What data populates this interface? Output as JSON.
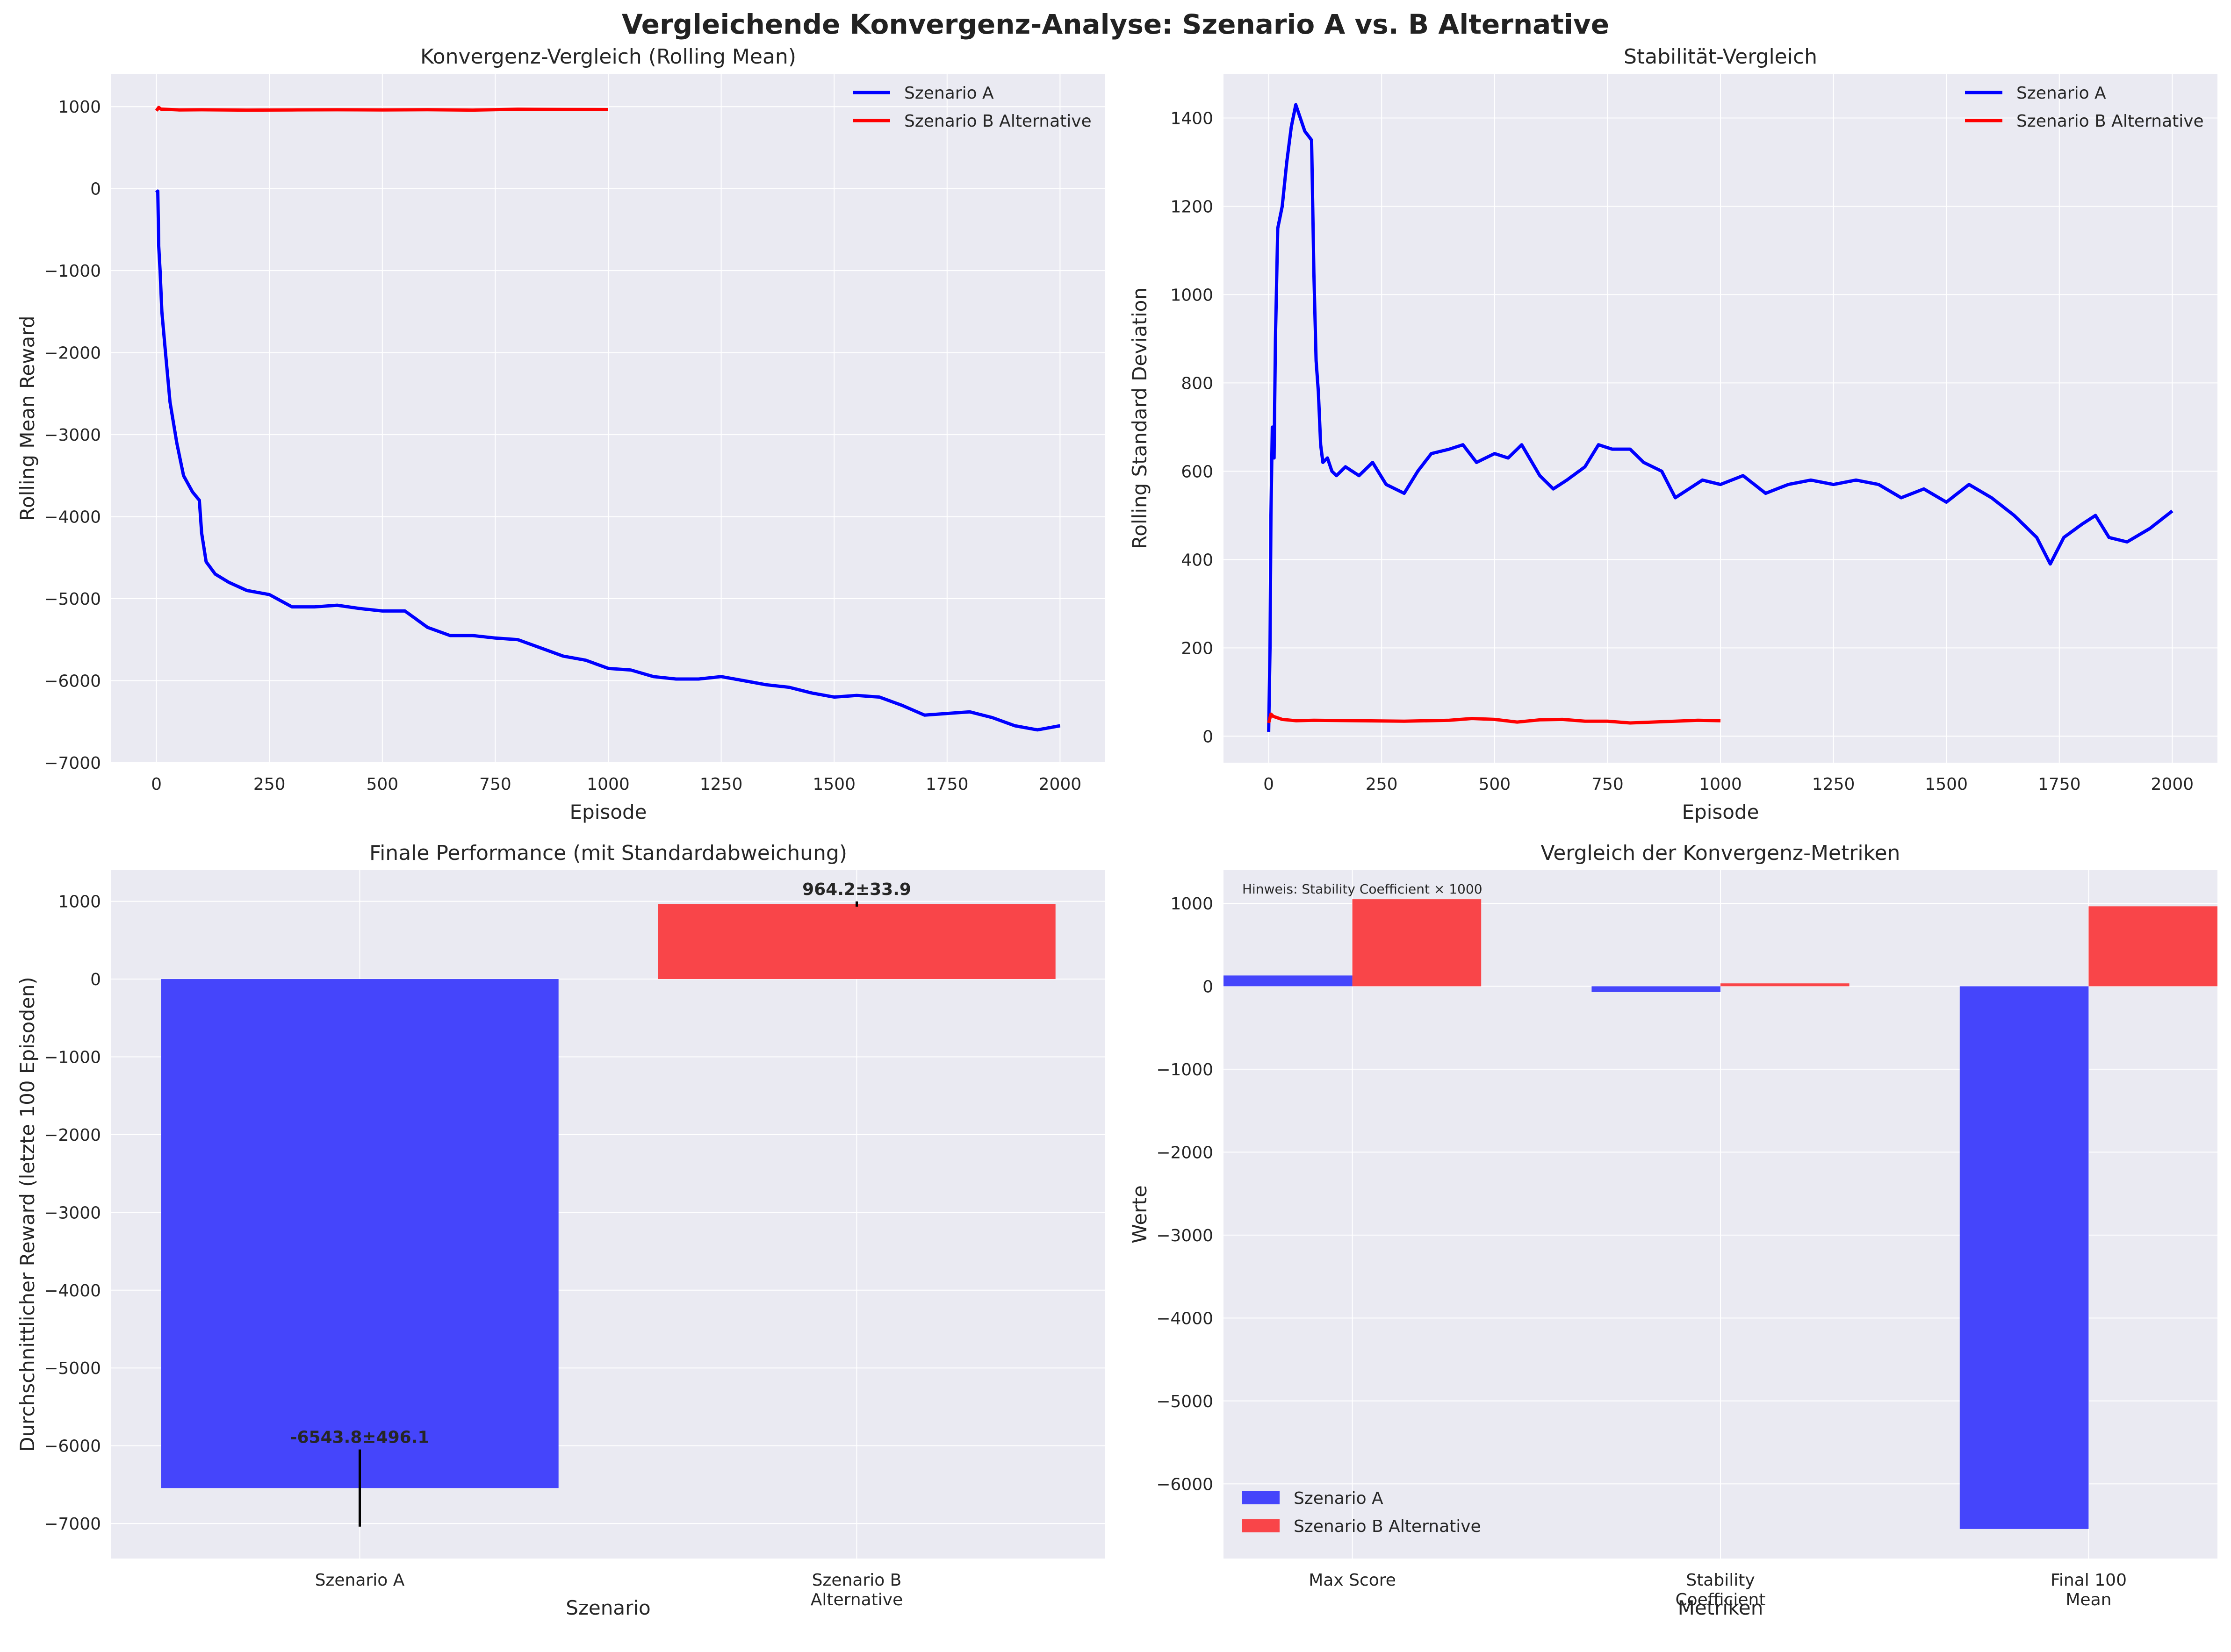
{
  "figure": {
    "title": "Vergleichende Konvergenz-Analyse: Szenario A vs. B Alternative"
  },
  "colors": {
    "scenario_a_line": "#0000ff",
    "scenario_b_line": "#ff0000",
    "scenario_a_bar": "#4545fb",
    "scenario_b_bar": "#f94549",
    "panel_background": "#eaeaf2",
    "grid": "#ffffff"
  },
  "chart_data": [
    {
      "id": "convergence",
      "type": "line",
      "title": "Konvergenz-Vergleich (Rolling Mean)",
      "xlabel": "Episode",
      "ylabel": "Rolling Mean Reward",
      "xlim": [
        -100,
        2100
      ],
      "ylim": [
        -7000,
        1400
      ],
      "xticks": [
        0,
        250,
        500,
        750,
        1000,
        1250,
        1500,
        1750,
        2000
      ],
      "yticks": [
        -7000,
        -6000,
        -5000,
        -4000,
        -3000,
        -2000,
        -1000,
        0,
        1000
      ],
      "grid": true,
      "legend": "top-right",
      "series": [
        {
          "name": "Szenario A",
          "x": [
            0,
            3,
            5,
            8,
            12,
            20,
            30,
            45,
            60,
            80,
            95,
            100,
            110,
            130,
            160,
            200,
            250,
            300,
            350,
            400,
            450,
            500,
            550,
            600,
            650,
            700,
            750,
            800,
            850,
            900,
            950,
            1000,
            1050,
            1100,
            1150,
            1200,
            1250,
            1300,
            1350,
            1400,
            1450,
            1500,
            1550,
            1600,
            1650,
            1700,
            1750,
            1800,
            1850,
            1900,
            1950,
            2000
          ],
          "y": [
            -50,
            -30,
            -700,
            -1000,
            -1500,
            -2000,
            -2600,
            -3100,
            -3500,
            -3700,
            -3800,
            -4200,
            -4550,
            -4700,
            -4800,
            -4900,
            -4950,
            -5100,
            -5100,
            -5080,
            -5120,
            -5150,
            -5150,
            -5350,
            -5450,
            -5450,
            -5480,
            -5500,
            -5600,
            -5700,
            -5750,
            -5850,
            -5870,
            -5950,
            -5980,
            -5980,
            -5950,
            -6000,
            -6050,
            -6080,
            -6150,
            -6200,
            -6180,
            -6200,
            -6300,
            -6420,
            -6400,
            -6380,
            -6450,
            -6550,
            -6600,
            -6550
          ]
        },
        {
          "name": "Szenario B Alternative",
          "x": [
            0,
            5,
            10,
            50,
            100,
            200,
            300,
            400,
            500,
            600,
            700,
            800,
            900,
            1000
          ],
          "y": [
            950,
            990,
            970,
            960,
            962,
            958,
            960,
            962,
            960,
            963,
            958,
            968,
            966,
            964
          ]
        }
      ]
    },
    {
      "id": "stability",
      "type": "line",
      "title": "Stabilität-Vergleich",
      "xlabel": "Episode",
      "ylabel": "Rolling Standard Deviation",
      "xlim": [
        -100,
        2100
      ],
      "ylim": [
        -60,
        1500
      ],
      "xticks": [
        0,
        250,
        500,
        750,
        1000,
        1250,
        1500,
        1750,
        2000
      ],
      "yticks": [
        0,
        200,
        400,
        600,
        800,
        1000,
        1200,
        1400
      ],
      "grid": true,
      "legend": "top-right",
      "series": [
        {
          "name": "Szenario A",
          "x": [
            0,
            3,
            5,
            8,
            12,
            15,
            20,
            30,
            40,
            50,
            60,
            70,
            80,
            95,
            100,
            105,
            110,
            115,
            120,
            130,
            140,
            150,
            170,
            200,
            230,
            260,
            300,
            330,
            360,
            400,
            430,
            460,
            500,
            530,
            560,
            600,
            630,
            660,
            700,
            730,
            760,
            800,
            830,
            870,
            900,
            930,
            960,
            1000,
            1050,
            1100,
            1150,
            1200,
            1250,
            1300,
            1350,
            1400,
            1450,
            1500,
            1550,
            1600,
            1650,
            1700,
            1730,
            1760,
            1800,
            1830,
            1860,
            1900,
            1950,
            2000
          ],
          "y": [
            10,
            200,
            500,
            700,
            630,
            900,
            1150,
            1200,
            1300,
            1380,
            1430,
            1400,
            1370,
            1350,
            1050,
            850,
            780,
            660,
            620,
            630,
            600,
            590,
            610,
            590,
            620,
            570,
            550,
            600,
            640,
            650,
            660,
            620,
            640,
            630,
            660,
            590,
            560,
            580,
            610,
            660,
            650,
            650,
            620,
            600,
            540,
            560,
            580,
            570,
            590,
            550,
            570,
            580,
            570,
            580,
            570,
            540,
            560,
            530,
            570,
            540,
            500,
            450,
            390,
            450,
            480,
            500,
            450,
            440,
            470,
            510
          ]
        },
        {
          "name": "Szenario B Alternative",
          "x": [
            0,
            5,
            10,
            30,
            60,
            100,
            200,
            300,
            400,
            450,
            500,
            550,
            600,
            650,
            700,
            750,
            800,
            850,
            900,
            950,
            1000
          ],
          "y": [
            30,
            50,
            45,
            38,
            35,
            36,
            35,
            34,
            36,
            40,
            38,
            32,
            37,
            38,
            34,
            34,
            30,
            32,
            34,
            36,
            35
          ]
        }
      ]
    },
    {
      "id": "final-performance",
      "type": "bar",
      "title": "Finale Performance (mit Standardabweichung)",
      "xlabel": "Szenario",
      "ylabel": "Durchschnittlicher Reward (letzte 100 Episoden)",
      "ylim": [
        -7450,
        1400
      ],
      "yticks": [
        -7000,
        -6000,
        -5000,
        -4000,
        -3000,
        -2000,
        -1000,
        0,
        1000
      ],
      "grid": true,
      "categories": [
        [
          "Szenario A"
        ],
        [
          "Szenario B",
          "Alternative"
        ]
      ],
      "values": [
        -6543.8,
        964.2
      ],
      "errors": [
        496.1,
        33.9
      ],
      "data_labels": [
        "-6543.8±496.1",
        "964.2±33.9"
      ]
    },
    {
      "id": "metrics",
      "type": "bar",
      "title": "Vergleich der Konvergenz-Metriken",
      "xlabel": "Metriken",
      "ylabel": "Werte",
      "ylim": [
        -6900,
        1400
      ],
      "yticks": [
        -6000,
        -5000,
        -4000,
        -3000,
        -2000,
        -1000,
        0,
        1000
      ],
      "grid": true,
      "legend": "bottom-left",
      "annotation": "Hinweis: Stability Coefficient × 1000",
      "categories": [
        [
          "Max Score"
        ],
        [
          "Stability",
          "Coefficient"
        ],
        [
          "Final 100",
          "Mean"
        ]
      ],
      "series": [
        {
          "name": "Szenario A",
          "values": [
            130,
            -70,
            -6543.8
          ]
        },
        {
          "name": "Szenario B Alternative",
          "values": [
            1050,
            35,
            964.2
          ]
        }
      ]
    }
  ]
}
